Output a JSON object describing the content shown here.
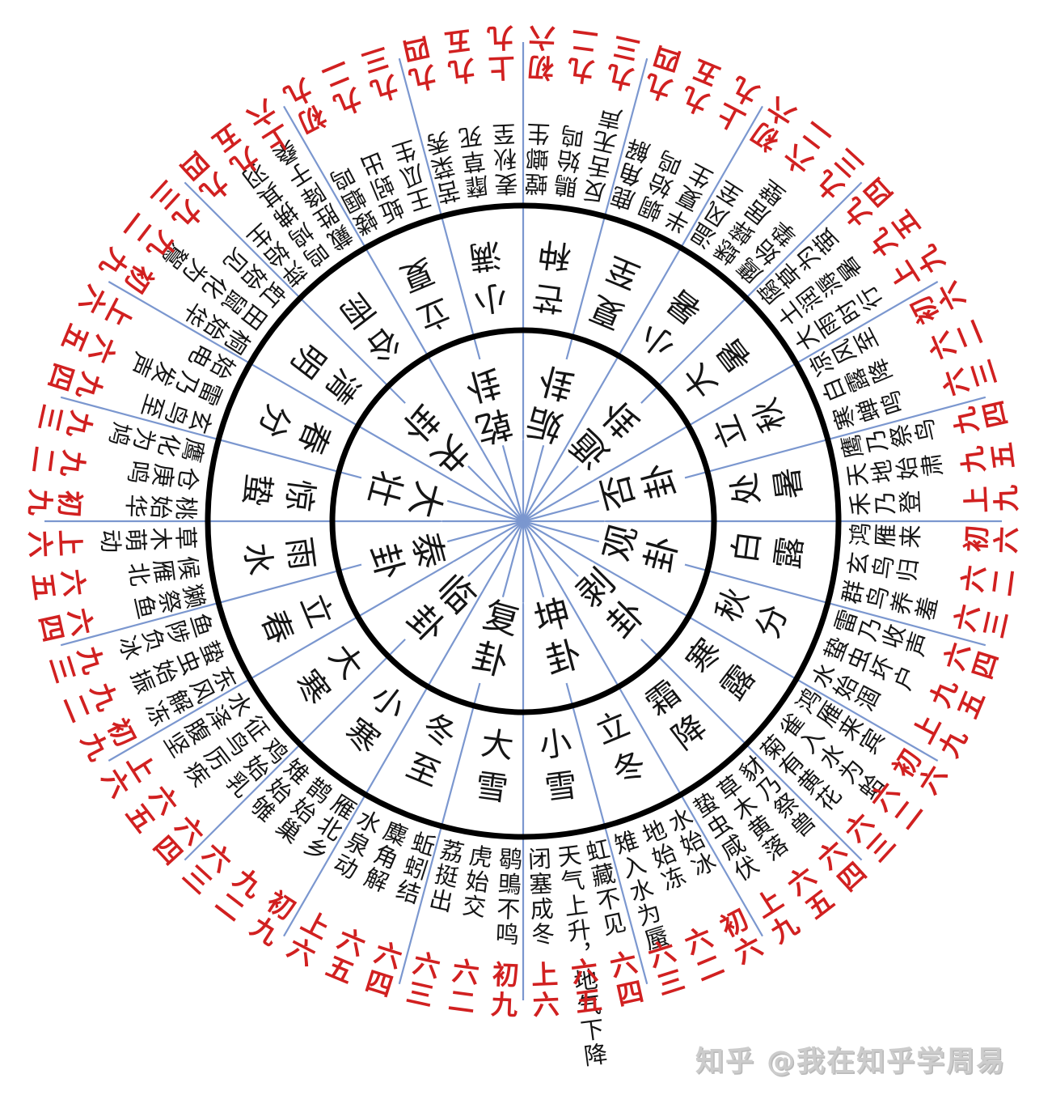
{
  "watermark": {
    "text": "知乎 @我在知乎学周易"
  },
  "colors": {
    "ink": "#151515",
    "yao_red": "#d12020",
    "spoke_blue": "#7b97cf",
    "circle_black": "#000000",
    "watermark_gray": "#cccccc"
  },
  "wheel": {
    "sectors": [
      {
        "hexagram": "复卦",
        "terms": [
          {
            "term": "大雪",
            "pentads": [
              "鹖鴠不鸣",
              "虎始交",
              "荔挺出"
            ],
            "yaos": [
              "初九",
              "六二",
              "六三"
            ]
          },
          {
            "term": "冬至",
            "pentads": [
              "蚯蚓结",
              "麋角解",
              "水泉动"
            ],
            "yaos": [
              "六四",
              "六五",
              "上六"
            ]
          }
        ]
      },
      {
        "hexagram": "临卦",
        "terms": [
          {
            "term": "小寒",
            "pentads": [
              "雁北乡",
              "鹊始巢",
              "雉始雊"
            ],
            "yaos": [
              "初九",
              "九二",
              "六三"
            ]
          },
          {
            "term": "大寒",
            "pentads": [
              "鸡始乳",
              "征鸟厉疾",
              "水泽腹坚"
            ],
            "yaos": [
              "六四",
              "六五",
              "上六"
            ]
          }
        ]
      },
      {
        "hexagram": "泰卦",
        "terms": [
          {
            "term": "立春",
            "pentads": [
              "东风解冻",
              "蛰虫始振",
              "鱼陟负冰"
            ],
            "yaos": [
              "初九",
              "九二",
              "九三"
            ]
          },
          {
            "term": "雨水",
            "pentads": [
              "獭祭鱼",
              "候雁北",
              "草木萌动"
            ],
            "yaos": [
              "六四",
              "六五",
              "上六"
            ]
          }
        ]
      },
      {
        "hexagram": "大壮",
        "terms": [
          {
            "term": "惊蛰",
            "pentads": [
              "桃始华",
              "仓庚鸣",
              "鹰化为鸠"
            ],
            "yaos": [
              "初九",
              "九二",
              "九三"
            ]
          },
          {
            "term": "春分",
            "pentads": [
              "玄鸟至",
              "雷乃发声",
              "始电"
            ],
            "yaos": [
              "九四",
              "六五",
              "上六"
            ]
          }
        ]
      },
      {
        "hexagram": "夬卦",
        "terms": [
          {
            "term": "清明",
            "pentads": [
              "桐始华",
              "田鼠化为鴽",
              "虹始见"
            ],
            "yaos": [
              "初九",
              "九二",
              "九三"
            ]
          },
          {
            "term": "谷雨",
            "pentads": [
              "萍始生",
              "鸣鸠拂其羽",
              "戴胜降于桑"
            ],
            "yaos": [
              "九四",
              "九五",
              "上六"
            ]
          }
        ]
      },
      {
        "hexagram": "乾卦",
        "terms": [
          {
            "term": "立夏",
            "pentads": [
              "蝼蝈鸣",
              "蚯蚓出",
              "王瓜生"
            ],
            "yaos": [
              "初九",
              "九二",
              "九三"
            ]
          },
          {
            "term": "小满",
            "pentads": [
              "苦菜秀",
              "靡草死",
              "麦秋至"
            ],
            "yaos": [
              "九四",
              "九五",
              "上九"
            ]
          }
        ]
      },
      {
        "hexagram": "姤卦",
        "terms": [
          {
            "term": "芒种",
            "pentads": [
              "螳螂生",
              "鵙始鸣",
              "反舌无声"
            ],
            "yaos": [
              "初六",
              "九二",
              "九三"
            ]
          },
          {
            "term": "夏至",
            "pentads": [
              "鹿角解",
              "蜩始鸣",
              "半夏生"
            ],
            "yaos": [
              "九四",
              "九五",
              "上九"
            ]
          }
        ]
      },
      {
        "hexagram": "遁卦",
        "terms": [
          {
            "term": "小暑",
            "pentads": [
              "温风至",
              "蟋蟀居壁",
              "鹰始挚"
            ],
            "yaos": [
              "初六",
              "六二",
              "九三"
            ]
          },
          {
            "term": "大暑",
            "pentads": [
              "腐草为萤",
              "土润溽暑",
              "大雨时行"
            ],
            "yaos": [
              "九四",
              "九五",
              "上九"
            ]
          }
        ]
      },
      {
        "hexagram": "否卦",
        "terms": [
          {
            "term": "立秋",
            "pentads": [
              "凉风至",
              "白露降",
              "寒蝉鸣"
            ],
            "yaos": [
              "初六",
              "六二",
              "六三"
            ]
          },
          {
            "term": "处暑",
            "pentads": [
              "鹰乃祭鸟",
              "天地始肃",
              "禾乃登"
            ],
            "yaos": [
              "九四",
              "九五",
              "上九"
            ]
          }
        ]
      },
      {
        "hexagram": "观卦",
        "terms": [
          {
            "term": "白露",
            "pentads": [
              "鸿雁来",
              "玄鸟归",
              "群鸟养羞"
            ],
            "yaos": [
              "初六",
              "六二",
              "六三"
            ]
          },
          {
            "term": "秋分",
            "pentads": [
              "雷乃收声",
              "蛰虫坏户",
              "水始涸"
            ],
            "yaos": [
              "六四",
              "九五",
              "上九"
            ]
          }
        ]
      },
      {
        "hexagram": "剥卦",
        "terms": [
          {
            "term": "寒露",
            "pentads": [
              "鸿雁来宾",
              "雀入水为蛤",
              "菊有黄花"
            ],
            "yaos": [
              "初六",
              "六二",
              "六三"
            ]
          },
          {
            "term": "霜降",
            "pentads": [
              "豺乃祭兽",
              "草木黄落",
              "蛰虫咸伏"
            ],
            "yaos": [
              "六四",
              "六五",
              "上九"
            ]
          }
        ]
      },
      {
        "hexagram": "坤卦",
        "terms": [
          {
            "term": "立冬",
            "pentads": [
              "水始冰",
              "地始冻",
              "雉入水为蜃"
            ],
            "yaos": [
              "初六",
              "六二",
              "六三"
            ]
          },
          {
            "term": "小雪",
            "pentads": [
              "虹藏不见",
              "天气上升，地气下降",
              "闭塞成冬"
            ],
            "yaos": [
              "六四",
              "六五",
              "上六"
            ]
          }
        ]
      }
    ]
  }
}
